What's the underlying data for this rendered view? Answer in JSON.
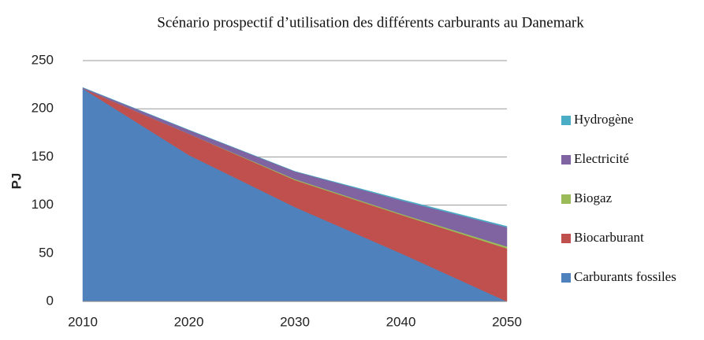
{
  "chart_data": {
    "type": "stacked_area",
    "title": "Scénario prospectif d’utilisation des différents carburants au Danemark",
    "y_label": "PJ",
    "x": [
      2010,
      2020,
      2030,
      2040,
      2050
    ],
    "xlim": [
      2010,
      2050
    ],
    "xticks": [
      2010,
      2020,
      2030,
      2040,
      2050
    ],
    "ylim": [
      0,
      250
    ],
    "yticks": [
      0,
      50,
      100,
      150,
      200,
      250
    ],
    "grid": true,
    "legend": "right",
    "series": [
      {
        "name": "Carburants fossiles",
        "color": "#4f81bd",
        "values": [
          221,
          152,
          98,
          50,
          0
        ]
      },
      {
        "name": "Biocarburant",
        "color": "#c0504d",
        "values": [
          0,
          22,
          28,
          40,
          55
        ]
      },
      {
        "name": "Biogaz",
        "color": "#9bbb59",
        "values": [
          0,
          0,
          1,
          1,
          2
        ]
      },
      {
        "name": "Electricité",
        "color": "#8064a2",
        "values": [
          1,
          4,
          8,
          14,
          20
        ]
      },
      {
        "name": "Hydrogène",
        "color": "#4bacc6",
        "values": [
          0,
          0,
          0,
          1,
          1
        ]
      }
    ]
  }
}
